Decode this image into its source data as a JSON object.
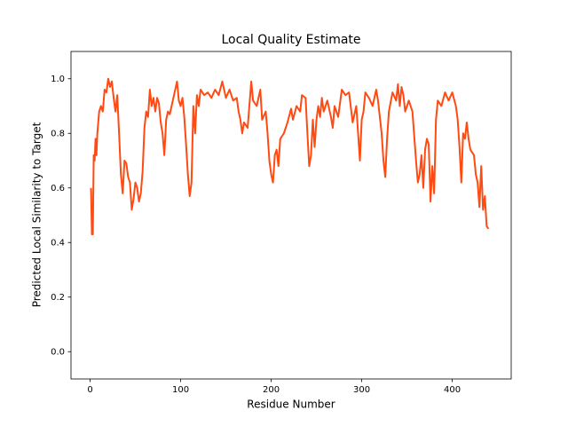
{
  "chart_data": {
    "type": "line",
    "title": "Local Quality Estimate",
    "xlabel": "Residue Number",
    "ylabel": "Predicted Local Similarity to Target",
    "color": "#ff4a12",
    "grid": false,
    "xlim": [
      -21.1,
      465.1
    ],
    "ylim": [
      -0.1,
      1.1
    ],
    "xticks": [
      0,
      100,
      200,
      300,
      400
    ],
    "yticks": [
      {
        "value": 0,
        "label": "0.0"
      },
      0.2,
      0.4,
      0.6,
      0.8,
      {
        "value": 1,
        "label": "1.0"
      }
    ],
    "x": [
      1,
      2,
      3,
      4,
      5,
      6,
      7,
      8,
      10,
      12,
      14,
      16,
      18,
      20,
      22,
      24,
      26,
      28,
      30,
      32,
      34,
      36,
      38,
      40,
      42,
      44,
      46,
      48,
      50,
      52,
      54,
      56,
      58,
      60,
      62,
      64,
      66,
      68,
      70,
      72,
      74,
      76,
      78,
      80,
      82,
      84,
      86,
      88,
      90,
      92,
      94,
      96,
      98,
      100,
      102,
      104,
      106,
      108,
      110,
      112,
      114,
      116,
      118,
      120,
      122,
      126,
      130,
      134,
      138,
      142,
      146,
      150,
      154,
      158,
      162,
      164,
      166,
      168,
      170,
      174,
      178,
      180,
      184,
      188,
      190,
      194,
      196,
      198,
      200,
      202,
      204,
      206,
      208,
      210,
      214,
      218,
      222,
      224,
      228,
      232,
      234,
      238,
      240,
      242,
      244,
      246,
      248,
      250,
      252,
      254,
      256,
      258,
      262,
      266,
      268,
      270,
      274,
      278,
      282,
      286,
      290,
      294,
      296,
      298,
      300,
      302,
      304,
      308,
      312,
      316,
      318,
      320,
      322,
      324,
      326,
      328,
      330,
      334,
      338,
      340,
      342,
      344,
      346,
      348,
      352,
      356,
      360,
      362,
      364,
      366,
      368,
      370,
      372,
      374,
      376,
      378,
      380,
      382,
      384,
      388,
      392,
      396,
      400,
      404,
      406,
      408,
      410,
      412,
      414,
      416,
      418,
      420,
      424,
      426,
      428,
      430,
      432,
      434,
      436,
      438,
      440
    ],
    "values": [
      0.6,
      0.43,
      0.43,
      0.72,
      0.7,
      0.78,
      0.72,
      0.8,
      0.88,
      0.9,
      0.88,
      0.96,
      0.95,
      1.0,
      0.97,
      0.99,
      0.93,
      0.88,
      0.94,
      0.8,
      0.65,
      0.58,
      0.7,
      0.69,
      0.64,
      0.62,
      0.52,
      0.56,
      0.62,
      0.6,
      0.55,
      0.58,
      0.66,
      0.82,
      0.88,
      0.86,
      0.96,
      0.9,
      0.93,
      0.88,
      0.93,
      0.91,
      0.84,
      0.8,
      0.72,
      0.85,
      0.88,
      0.87,
      0.9,
      0.93,
      0.96,
      0.99,
      0.92,
      0.9,
      0.93,
      0.86,
      0.76,
      0.65,
      0.57,
      0.62,
      0.9,
      0.8,
      0.94,
      0.9,
      0.96,
      0.94,
      0.95,
      0.93,
      0.96,
      0.94,
      0.99,
      0.93,
      0.96,
      0.92,
      0.93,
      0.88,
      0.85,
      0.8,
      0.84,
      0.82,
      0.99,
      0.92,
      0.9,
      0.96,
      0.85,
      0.88,
      0.8,
      0.7,
      0.65,
      0.62,
      0.72,
      0.74,
      0.68,
      0.78,
      0.8,
      0.84,
      0.89,
      0.85,
      0.9,
      0.88,
      0.94,
      0.93,
      0.8,
      0.68,
      0.72,
      0.85,
      0.75,
      0.85,
      0.9,
      0.86,
      0.93,
      0.88,
      0.92,
      0.86,
      0.82,
      0.9,
      0.86,
      0.96,
      0.94,
      0.95,
      0.84,
      0.9,
      0.8,
      0.7,
      0.85,
      0.88,
      0.95,
      0.93,
      0.9,
      0.96,
      0.92,
      0.86,
      0.8,
      0.7,
      0.64,
      0.78,
      0.88,
      0.95,
      0.92,
      0.98,
      0.9,
      0.97,
      0.94,
      0.88,
      0.92,
      0.88,
      0.7,
      0.62,
      0.65,
      0.72,
      0.6,
      0.74,
      0.78,
      0.76,
      0.55,
      0.68,
      0.58,
      0.85,
      0.92,
      0.9,
      0.95,
      0.92,
      0.95,
      0.9,
      0.85,
      0.75,
      0.62,
      0.8,
      0.78,
      0.84,
      0.78,
      0.74,
      0.72,
      0.65,
      0.62,
      0.53,
      0.68,
      0.52,
      0.57,
      0.46,
      0.45
    ]
  }
}
